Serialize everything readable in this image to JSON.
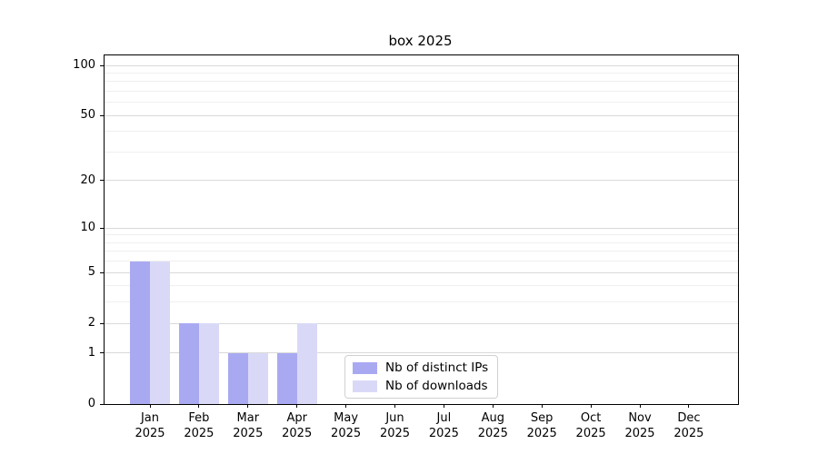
{
  "chart_data": {
    "type": "bar",
    "title": "box 2025",
    "categories": [
      "Jan",
      "Feb",
      "Mar",
      "Apr",
      "May",
      "Jun",
      "Jul",
      "Aug",
      "Sep",
      "Oct",
      "Nov",
      "Dec"
    ],
    "category_year": "2025",
    "series": [
      {
        "name": "Nb of distinct IPs",
        "color": "#a9a9f2",
        "values": [
          6,
          2,
          1,
          1,
          0,
          0,
          0,
          0,
          0,
          0,
          0,
          0
        ]
      },
      {
        "name": "Nb of downloads",
        "color": "#d9d9f7",
        "values": [
          6,
          2,
          1,
          2,
          0,
          0,
          0,
          0,
          0,
          0,
          0,
          0
        ]
      }
    ],
    "xlabel": "",
    "ylabel": "",
    "yscale": "log10(value+1)",
    "yticks": [
      0,
      1,
      2,
      5,
      10,
      20,
      50,
      100
    ],
    "yticks_minor": [
      3,
      4,
      6,
      7,
      8,
      9,
      30,
      40,
      60,
      70,
      80,
      90
    ],
    "ylim": [
      0,
      115
    ],
    "grid": true,
    "legend_position": "lower center inside",
    "axis_color": "#000000",
    "grid_major_color": "#d9d9d9",
    "grid_minor_color": "#efefef"
  }
}
